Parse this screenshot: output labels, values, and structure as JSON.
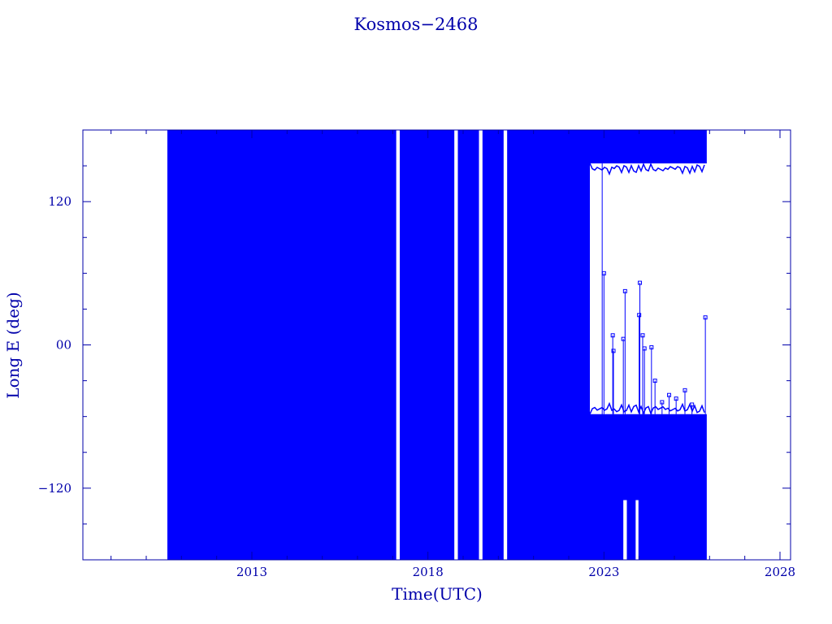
{
  "chart_data": {
    "type": "scatter",
    "title": "Kosmos−2468",
    "xlabel": "Time(UTC)",
    "ylabel": "Long E (deg)",
    "x_ticks": [
      {
        "value": 2013,
        "label": "2013"
      },
      {
        "value": 2018,
        "label": "2018"
      },
      {
        "value": 2023,
        "label": "2023"
      },
      {
        "value": 2028,
        "label": "2028"
      }
    ],
    "y_ticks": [
      {
        "value": 120,
        "label": "120"
      },
      {
        "value": 0,
        "label": "00"
      },
      {
        "value": -120,
        "label": "−120"
      }
    ],
    "xlim": [
      2008.2,
      2028.3
    ],
    "ylim": [
      -180,
      180
    ],
    "grid": false,
    "colors": {
      "series": "#0000ff",
      "axes": "#0000aa"
    },
    "series": [
      {
        "segments": [
          {
            "x0": 2010.6,
            "x1": 2022.6,
            "style": "wrapping",
            "ymin": -180,
            "ymax": 180
          },
          {
            "x0": 2022.6,
            "x1": 2025.92,
            "style": "band",
            "ymin": 152,
            "ymax": 180
          },
          {
            "x0": 2022.6,
            "x1": 2025.92,
            "style": "band",
            "ymin": -180,
            "ymax": -58
          }
        ],
        "spikes": [
          {
            "x": 2022.95,
            "y": -62,
            "ymax": 152
          },
          {
            "x": 2023.0,
            "y": 60
          },
          {
            "x": 2023.25,
            "y": 8
          },
          {
            "x": 2023.27,
            "y": -5
          },
          {
            "x": 2023.6,
            "y": 45
          },
          {
            "x": 2023.55,
            "y": 5
          },
          {
            "x": 2024.02,
            "y": 52
          },
          {
            "x": 2024.0,
            "y": 25
          },
          {
            "x": 2024.1,
            "y": 8
          },
          {
            "x": 2024.15,
            "y": -3
          },
          {
            "x": 2024.35,
            "y": -2
          },
          {
            "x": 2024.45,
            "y": -30
          },
          {
            "x": 2024.65,
            "y": -48
          },
          {
            "x": 2024.85,
            "y": -42
          },
          {
            "x": 2025.05,
            "y": -45
          },
          {
            "x": 2025.3,
            "y": -38
          },
          {
            "x": 2025.5,
            "y": -50
          },
          {
            "x": 2025.88,
            "y": 23
          }
        ],
        "gaps": [
          {
            "x0": 2017.1,
            "x1": 2017.2
          },
          {
            "x0": 2018.75,
            "x1": 2018.85
          },
          {
            "x0": 2019.45,
            "x1": 2019.55
          },
          {
            "x0": 2020.15,
            "x1": 2020.25
          },
          {
            "x0": 2023.55,
            "x1": 2023.65,
            "ymax": -130
          },
          {
            "x0": 2023.9,
            "x1": 2023.98,
            "ymax": -130
          }
        ]
      }
    ]
  }
}
